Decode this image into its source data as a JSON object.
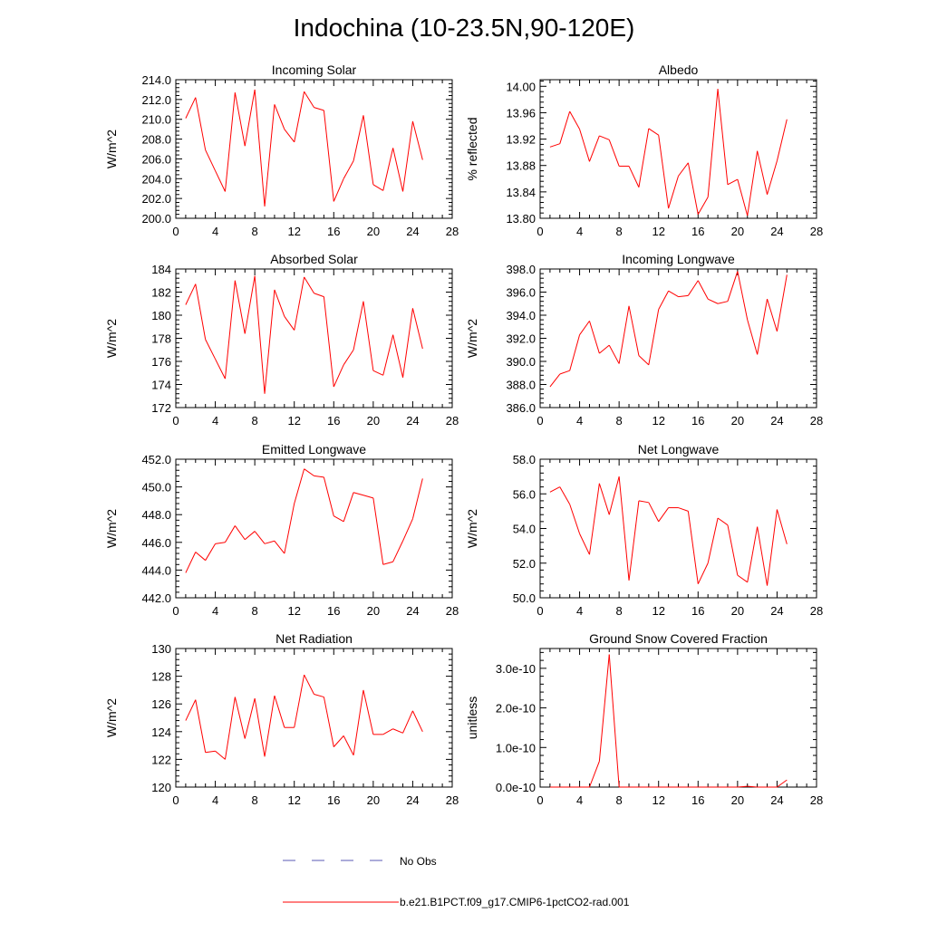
{
  "title": "Indochina (10-23.5N,90-120E)",
  "legend": {
    "items": [
      {
        "label": "No Obs",
        "color": "#5a5ab4",
        "dash": true
      },
      {
        "label": "b.e21.B1PCT.f09_g17.CMIP6-1pctCO2-rad.001",
        "color": "#ff0000",
        "dash": false
      }
    ]
  },
  "colors": {
    "series": "#ff0000",
    "frame": "#000000"
  },
  "chart_data": [
    {
      "type": "line",
      "title": "Incoming Solar",
      "ylabel": "W/m^2",
      "xlim": [
        0,
        28
      ],
      "ylim": [
        200,
        214
      ],
      "xticks": [
        "0",
        "4",
        "8",
        "12",
        "16",
        "20",
        "24",
        "28"
      ],
      "yticks": [
        "200.0",
        "202.0",
        "204.0",
        "206.0",
        "208.0",
        "210.0",
        "212.0",
        "214.0"
      ],
      "ytick_values": [
        200,
        202,
        204,
        206,
        208,
        210,
        212,
        214
      ],
      "x": [
        1,
        2,
        3,
        4,
        5,
        6,
        7,
        8,
        9,
        10,
        11,
        12,
        13,
        14,
        15,
        16,
        17,
        18,
        19,
        20,
        21,
        22,
        23,
        24,
        25
      ],
      "series": [
        {
          "name": "b.e21.B1PCT.f09_g17.CMIP6-1pctCO2-rad.001",
          "values": [
            210.1,
            212.2,
            206.9,
            204.8,
            202.7,
            212.7,
            207.3,
            213.0,
            201.2,
            211.5,
            209.0,
            207.7,
            212.8,
            211.2,
            210.9,
            201.7,
            204.0,
            205.8,
            210.4,
            203.4,
            202.8,
            207.1,
            202.7,
            209.8,
            205.9
          ]
        }
      ]
    },
    {
      "type": "line",
      "title": "Albedo",
      "ylabel": "% reflected",
      "xlim": [
        0,
        28
      ],
      "ylim": [
        13.8,
        14.01
      ],
      "xticks": [
        "0",
        "4",
        "8",
        "12",
        "16",
        "20",
        "24",
        "28"
      ],
      "yticks": [
        "13.80",
        "13.84",
        "13.88",
        "13.92",
        "13.96",
        "14.00"
      ],
      "ytick_values": [
        13.8,
        13.84,
        13.88,
        13.92,
        13.96,
        14.0
      ],
      "x": [
        1,
        2,
        3,
        4,
        5,
        6,
        7,
        8,
        9,
        10,
        11,
        12,
        13,
        14,
        15,
        16,
        17,
        18,
        19,
        20,
        21,
        22,
        23,
        24,
        25
      ],
      "series": [
        {
          "name": "b.e21.B1PCT.f09_g17.CMIP6-1pctCO2-rad.001",
          "values": [
            13.908,
            13.913,
            13.962,
            13.935,
            13.886,
            13.925,
            13.919,
            13.879,
            13.879,
            13.847,
            13.936,
            13.926,
            13.815,
            13.864,
            13.884,
            13.806,
            13.832,
            13.996,
            13.851,
            13.859,
            13.804,
            13.902,
            13.836,
            13.887,
            13.95
          ]
        }
      ]
    },
    {
      "type": "line",
      "title": "Absorbed Solar",
      "ylabel": "W/m^2",
      "xlim": [
        0,
        28
      ],
      "ylim": [
        172,
        184
      ],
      "xticks": [
        "0",
        "4",
        "8",
        "12",
        "16",
        "20",
        "24",
        "28"
      ],
      "yticks": [
        "172",
        "174",
        "176",
        "178",
        "180",
        "182",
        "184"
      ],
      "ytick_values": [
        172,
        174,
        176,
        178,
        180,
        182,
        184
      ],
      "x": [
        1,
        2,
        3,
        4,
        5,
        6,
        7,
        8,
        9,
        10,
        11,
        12,
        13,
        14,
        15,
        16,
        17,
        18,
        19,
        20,
        21,
        22,
        23,
        24,
        25
      ],
      "series": [
        {
          "name": "b.e21.B1PCT.f09_g17.CMIP6-1pctCO2-rad.001",
          "values": [
            180.9,
            182.7,
            177.9,
            176.2,
            174.5,
            183.0,
            178.4,
            183.4,
            173.2,
            182.2,
            179.9,
            178.7,
            183.3,
            181.9,
            181.6,
            173.8,
            175.7,
            177.0,
            181.2,
            175.2,
            174.8,
            178.3,
            174.6,
            180.6,
            177.1
          ]
        }
      ]
    },
    {
      "type": "line",
      "title": "Incoming Longwave",
      "ylabel": "W/m^2",
      "xlim": [
        0,
        28
      ],
      "ylim": [
        386,
        398
      ],
      "xticks": [
        "0",
        "4",
        "8",
        "12",
        "16",
        "20",
        "24",
        "28"
      ],
      "yticks": [
        "386.0",
        "388.0",
        "390.0",
        "392.0",
        "394.0",
        "396.0",
        "398.0"
      ],
      "ytick_values": [
        386,
        388,
        390,
        392,
        394,
        396,
        398
      ],
      "x": [
        1,
        2,
        3,
        4,
        5,
        6,
        7,
        8,
        9,
        10,
        11,
        12,
        13,
        14,
        15,
        16,
        17,
        18,
        19,
        20,
        21,
        22,
        23,
        24,
        25
      ],
      "series": [
        {
          "name": "b.e21.B1PCT.f09_g17.CMIP6-1pctCO2-rad.001",
          "values": [
            387.8,
            388.9,
            389.2,
            392.3,
            393.5,
            390.7,
            391.4,
            389.8,
            394.8,
            390.5,
            389.7,
            394.5,
            396.1,
            395.6,
            395.7,
            397.0,
            395.4,
            395.0,
            395.2,
            397.8,
            393.6,
            390.6,
            395.4,
            392.6,
            397.5
          ]
        }
      ]
    },
    {
      "type": "line",
      "title": "Emitted Longwave",
      "ylabel": "W/m^2",
      "xlim": [
        0,
        28
      ],
      "ylim": [
        442,
        452
      ],
      "xticks": [
        "0",
        "4",
        "8",
        "12",
        "16",
        "20",
        "24",
        "28"
      ],
      "yticks": [
        "442.0",
        "444.0",
        "446.0",
        "448.0",
        "450.0",
        "452.0"
      ],
      "ytick_values": [
        442,
        444,
        446,
        448,
        450,
        452
      ],
      "x": [
        1,
        2,
        3,
        4,
        5,
        6,
        7,
        8,
        9,
        10,
        11,
        12,
        13,
        14,
        15,
        16,
        17,
        18,
        19,
        20,
        21,
        22,
        23,
        24,
        25
      ],
      "series": [
        {
          "name": "b.e21.B1PCT.f09_g17.CMIP6-1pctCO2-rad.001",
          "values": [
            443.8,
            445.3,
            444.7,
            445.9,
            446.0,
            447.2,
            446.2,
            446.8,
            445.9,
            446.1,
            445.2,
            448.8,
            451.3,
            450.8,
            450.7,
            447.9,
            447.5,
            449.6,
            449.4,
            449.2,
            444.4,
            444.6,
            446.1,
            447.7,
            450.6
          ]
        }
      ]
    },
    {
      "type": "line",
      "title": "Net Longwave",
      "ylabel": "W/m^2",
      "xlim": [
        0,
        28
      ],
      "ylim": [
        50,
        58
      ],
      "xticks": [
        "0",
        "4",
        "8",
        "12",
        "16",
        "20",
        "24",
        "28"
      ],
      "yticks": [
        "50.0",
        "52.0",
        "54.0",
        "56.0",
        "58.0"
      ],
      "ytick_values": [
        50,
        52,
        54,
        56,
        58
      ],
      "x": [
        1,
        2,
        3,
        4,
        5,
        6,
        7,
        8,
        9,
        10,
        11,
        12,
        13,
        14,
        15,
        16,
        17,
        18,
        19,
        20,
        21,
        22,
        23,
        24,
        25
      ],
      "series": [
        {
          "name": "b.e21.B1PCT.f09_g17.CMIP6-1pctCO2-rad.001",
          "values": [
            56.1,
            56.4,
            55.4,
            53.7,
            52.5,
            56.6,
            54.8,
            57.0,
            51.0,
            55.6,
            55.5,
            54.4,
            55.2,
            55.2,
            55.0,
            50.8,
            52.0,
            54.6,
            54.2,
            51.3,
            50.9,
            54.1,
            50.7,
            55.1,
            53.1
          ]
        }
      ]
    },
    {
      "type": "line",
      "title": "Net Radiation",
      "ylabel": "W/m^2",
      "xlim": [
        0,
        28
      ],
      "ylim": [
        120,
        130
      ],
      "xticks": [
        "0",
        "4",
        "8",
        "12",
        "16",
        "20",
        "24",
        "28"
      ],
      "yticks": [
        "120",
        "122",
        "124",
        "126",
        "128",
        "130"
      ],
      "ytick_values": [
        120,
        122,
        124,
        126,
        128,
        130
      ],
      "x": [
        1,
        2,
        3,
        4,
        5,
        6,
        7,
        8,
        9,
        10,
        11,
        12,
        13,
        14,
        15,
        16,
        17,
        18,
        19,
        20,
        21,
        22,
        23,
        24,
        25
      ],
      "series": [
        {
          "name": "b.e21.B1PCT.f09_g17.CMIP6-1pctCO2-rad.001",
          "values": [
            124.8,
            126.3,
            122.5,
            122.6,
            122.0,
            126.5,
            123.5,
            126.4,
            122.2,
            126.6,
            124.3,
            124.3,
            128.1,
            126.7,
            126.5,
            122.9,
            123.7,
            122.3,
            127.0,
            123.8,
            123.8,
            124.2,
            123.9,
            125.5,
            124.0
          ]
        }
      ]
    },
    {
      "type": "line",
      "title": "Ground Snow Covered Fraction",
      "ylabel": "unitless",
      "xlim": [
        0,
        28
      ],
      "ylim": [
        0,
        3.5e-10
      ],
      "xticks": [
        "0",
        "4",
        "8",
        "12",
        "16",
        "20",
        "24",
        "28"
      ],
      "yticks": [
        "0.0e-10",
        "1.0e-10",
        "2.0e-10",
        "3.0e-10"
      ],
      "ytick_values": [
        0,
        1e-10,
        2e-10,
        3e-10
      ],
      "x": [
        1,
        2,
        3,
        4,
        5,
        6,
        7,
        8,
        9,
        10,
        11,
        12,
        13,
        14,
        15,
        16,
        17,
        18,
        19,
        20,
        21,
        22,
        23,
        24,
        25
      ],
      "series": [
        {
          "name": "b.e21.B1PCT.f09_g17.CMIP6-1pctCO2-rad.001",
          "values": [
            0,
            0,
            0,
            0,
            0,
            6.5e-11,
            3.35e-10,
            0,
            0,
            0,
            0,
            0,
            0,
            0,
            0,
            0,
            0,
            0,
            0,
            0,
            2e-12,
            0,
            0,
            0,
            1.8e-11
          ]
        }
      ]
    }
  ]
}
